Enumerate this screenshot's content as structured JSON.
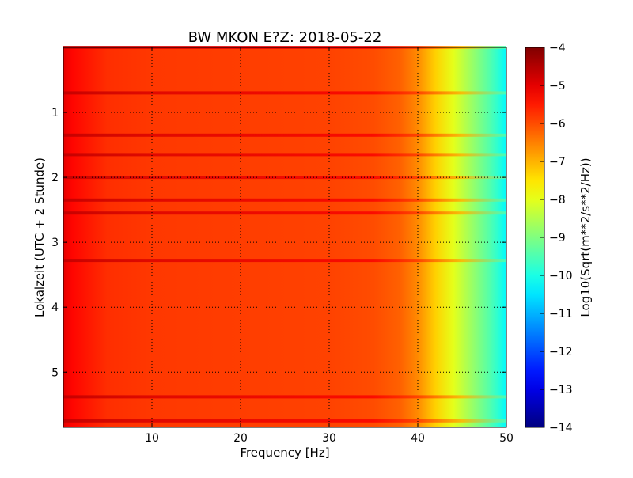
{
  "chart_data": {
    "type": "heatmap",
    "title": "BW MKON E?Z: 2018-05-22",
    "xlabel": "Frequency [Hz]",
    "ylabel": "Lokalzeit (UTC + 2 Stunde)",
    "xlim": [
      0,
      50
    ],
    "ylim": [
      5.85,
      0
    ],
    "x_ticks": [
      10,
      20,
      30,
      40,
      50
    ],
    "x_tick_labels": [
      "10",
      "20",
      "30",
      "40",
      "50"
    ],
    "y_ticks": [
      1,
      2,
      3,
      4,
      5
    ],
    "y_tick_labels": [
      "1",
      "2",
      "3",
      "4",
      "5"
    ],
    "grid": true,
    "colormap": "jet",
    "colorbar": {
      "label": "Log10(Sqrt(m**2/s**2/Hz))",
      "range": [
        -14,
        -4
      ],
      "ticks": [
        -4,
        -5,
        -6,
        -7,
        -8,
        -9,
        -10,
        -11,
        -12,
        -13,
        -14
      ],
      "tick_labels": [
        "−4",
        "−5",
        "−6",
        "−7",
        "−8",
        "−9",
        "−10",
        "−11",
        "−12",
        "−13",
        "−14"
      ]
    },
    "frequency_profile": {
      "frequency_hz": [
        0,
        1,
        5,
        10,
        20,
        30,
        35,
        38,
        40,
        42,
        44,
        46,
        48,
        49,
        50
      ],
      "log10_amplitude": [
        -5.0,
        -5.3,
        -5.7,
        -5.8,
        -5.85,
        -5.9,
        -6.0,
        -6.2,
        -6.6,
        -7.3,
        -8.0,
        -8.7,
        -9.4,
        -9.8,
        -10.3
      ]
    },
    "strong_bands_hours": [
      0.0,
      0.7,
      1.35,
      1.65,
      2.0,
      2.35,
      2.55,
      3.28,
      5.38,
      5.75
    ]
  }
}
